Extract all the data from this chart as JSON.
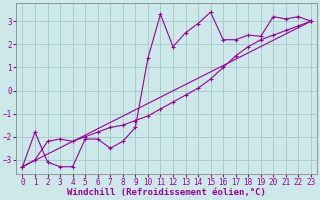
{
  "xlabel": "Windchill (Refroidissement éolien,°C)",
  "bg_color": "#cce8e8",
  "grid_color": "#aacccc",
  "line_color": "#990099",
  "line1_x": [
    0,
    1,
    2,
    3,
    4,
    5,
    6,
    7,
    8,
    9,
    10,
    11,
    12,
    13,
    14,
    15,
    16,
    17,
    18,
    19,
    20,
    21,
    22,
    23
  ],
  "line1_y": [
    -3.3,
    -1.8,
    -3.1,
    -3.3,
    -3.3,
    -2.1,
    -2.1,
    -2.5,
    -2.2,
    -1.6,
    1.4,
    3.3,
    1.9,
    2.5,
    2.9,
    3.4,
    2.2,
    2.2,
    2.4,
    2.35,
    3.2,
    3.1,
    3.2,
    3.0
  ],
  "line2_x": [
    0,
    23
  ],
  "line2_y": [
    -3.3,
    3.0
  ],
  "line3_x": [
    0,
    1,
    2,
    3,
    4,
    5,
    6,
    7,
    8,
    9,
    10,
    11,
    12,
    13,
    14,
    15,
    16,
    17,
    18,
    19,
    20,
    21,
    22,
    23
  ],
  "line3_y": [
    -3.3,
    -3.0,
    -2.2,
    -2.1,
    -2.2,
    -2.0,
    -1.8,
    -1.6,
    -1.5,
    -1.3,
    -1.1,
    -0.8,
    -0.5,
    -0.2,
    0.1,
    0.5,
    1.0,
    1.5,
    1.9,
    2.2,
    2.4,
    2.6,
    2.8,
    3.0
  ],
  "xlim": [
    -0.5,
    23.5
  ],
  "ylim": [
    -3.6,
    3.8
  ],
  "yticks": [
    -3,
    -2,
    -1,
    0,
    1,
    2,
    3
  ],
  "xticks": [
    0,
    1,
    2,
    3,
    4,
    5,
    6,
    7,
    8,
    9,
    10,
    11,
    12,
    13,
    14,
    15,
    16,
    17,
    18,
    19,
    20,
    21,
    22,
    23
  ],
  "markersize": 3,
  "linewidth": 0.8,
  "tick_fontsize": 5.5,
  "label_fontsize": 6.5
}
